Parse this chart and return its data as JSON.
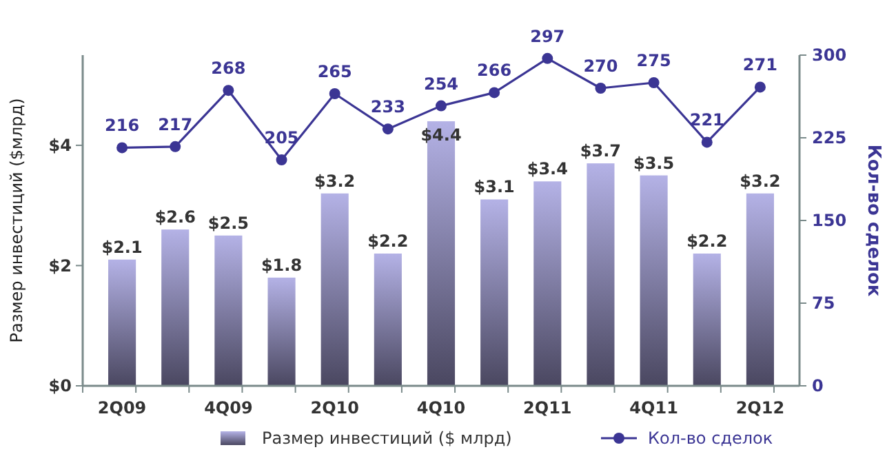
{
  "chart_data": {
    "type": "bar",
    "categories": [
      "2Q09",
      null,
      "4Q09",
      null,
      "2Q10",
      null,
      "4Q10",
      null,
      "2Q11",
      null,
      "4Q11",
      null,
      "2Q12"
    ],
    "series": [
      {
        "name": "Размер инвестиций ($ млрд)",
        "color": "#b4b2e6",
        "values": [
          2.1,
          2.6,
          2.5,
          1.8,
          3.2,
          2.2,
          4.4,
          3.1,
          3.4,
          3.7,
          3.5,
          2.2,
          3.2
        ],
        "value_labels": [
          "$2.1",
          "$2.6",
          "$2.5",
          "$1.8",
          "$3.2",
          "$2.2",
          "$4.4",
          "$3.1",
          "$3.4",
          "$3.7",
          "$3.5",
          "$2.2",
          "$3.2"
        ]
      },
      {
        "name": "Кол-во сделок",
        "type": "line",
        "axis": "y2",
        "color": "#3b3594",
        "values": [
          216,
          217,
          268,
          205,
          265,
          233,
          254,
          266,
          297,
          270,
          275,
          221,
          271
        ],
        "value_labels": [
          "216",
          "217",
          "268",
          "205",
          "265",
          "233",
          "254",
          "266",
          "297",
          "270",
          "275",
          "221",
          "271"
        ]
      }
    ],
    "ylabel": "Размер инвестиций ($млрд)",
    "y2label": "Кол-во сделок",
    "ylim": [
      0,
      5.5
    ],
    "yticks": [
      {
        "value": 0,
        "label": "$0"
      },
      {
        "value": 2,
        "label": "$2"
      },
      {
        "value": 4,
        "label": "$4"
      }
    ],
    "y2lim": [
      0,
      300
    ],
    "y2ticks": [
      0,
      75,
      150,
      225,
      300
    ],
    "grid": false,
    "legend": "bottom",
    "marker": "circle",
    "line_style": "solid"
  }
}
